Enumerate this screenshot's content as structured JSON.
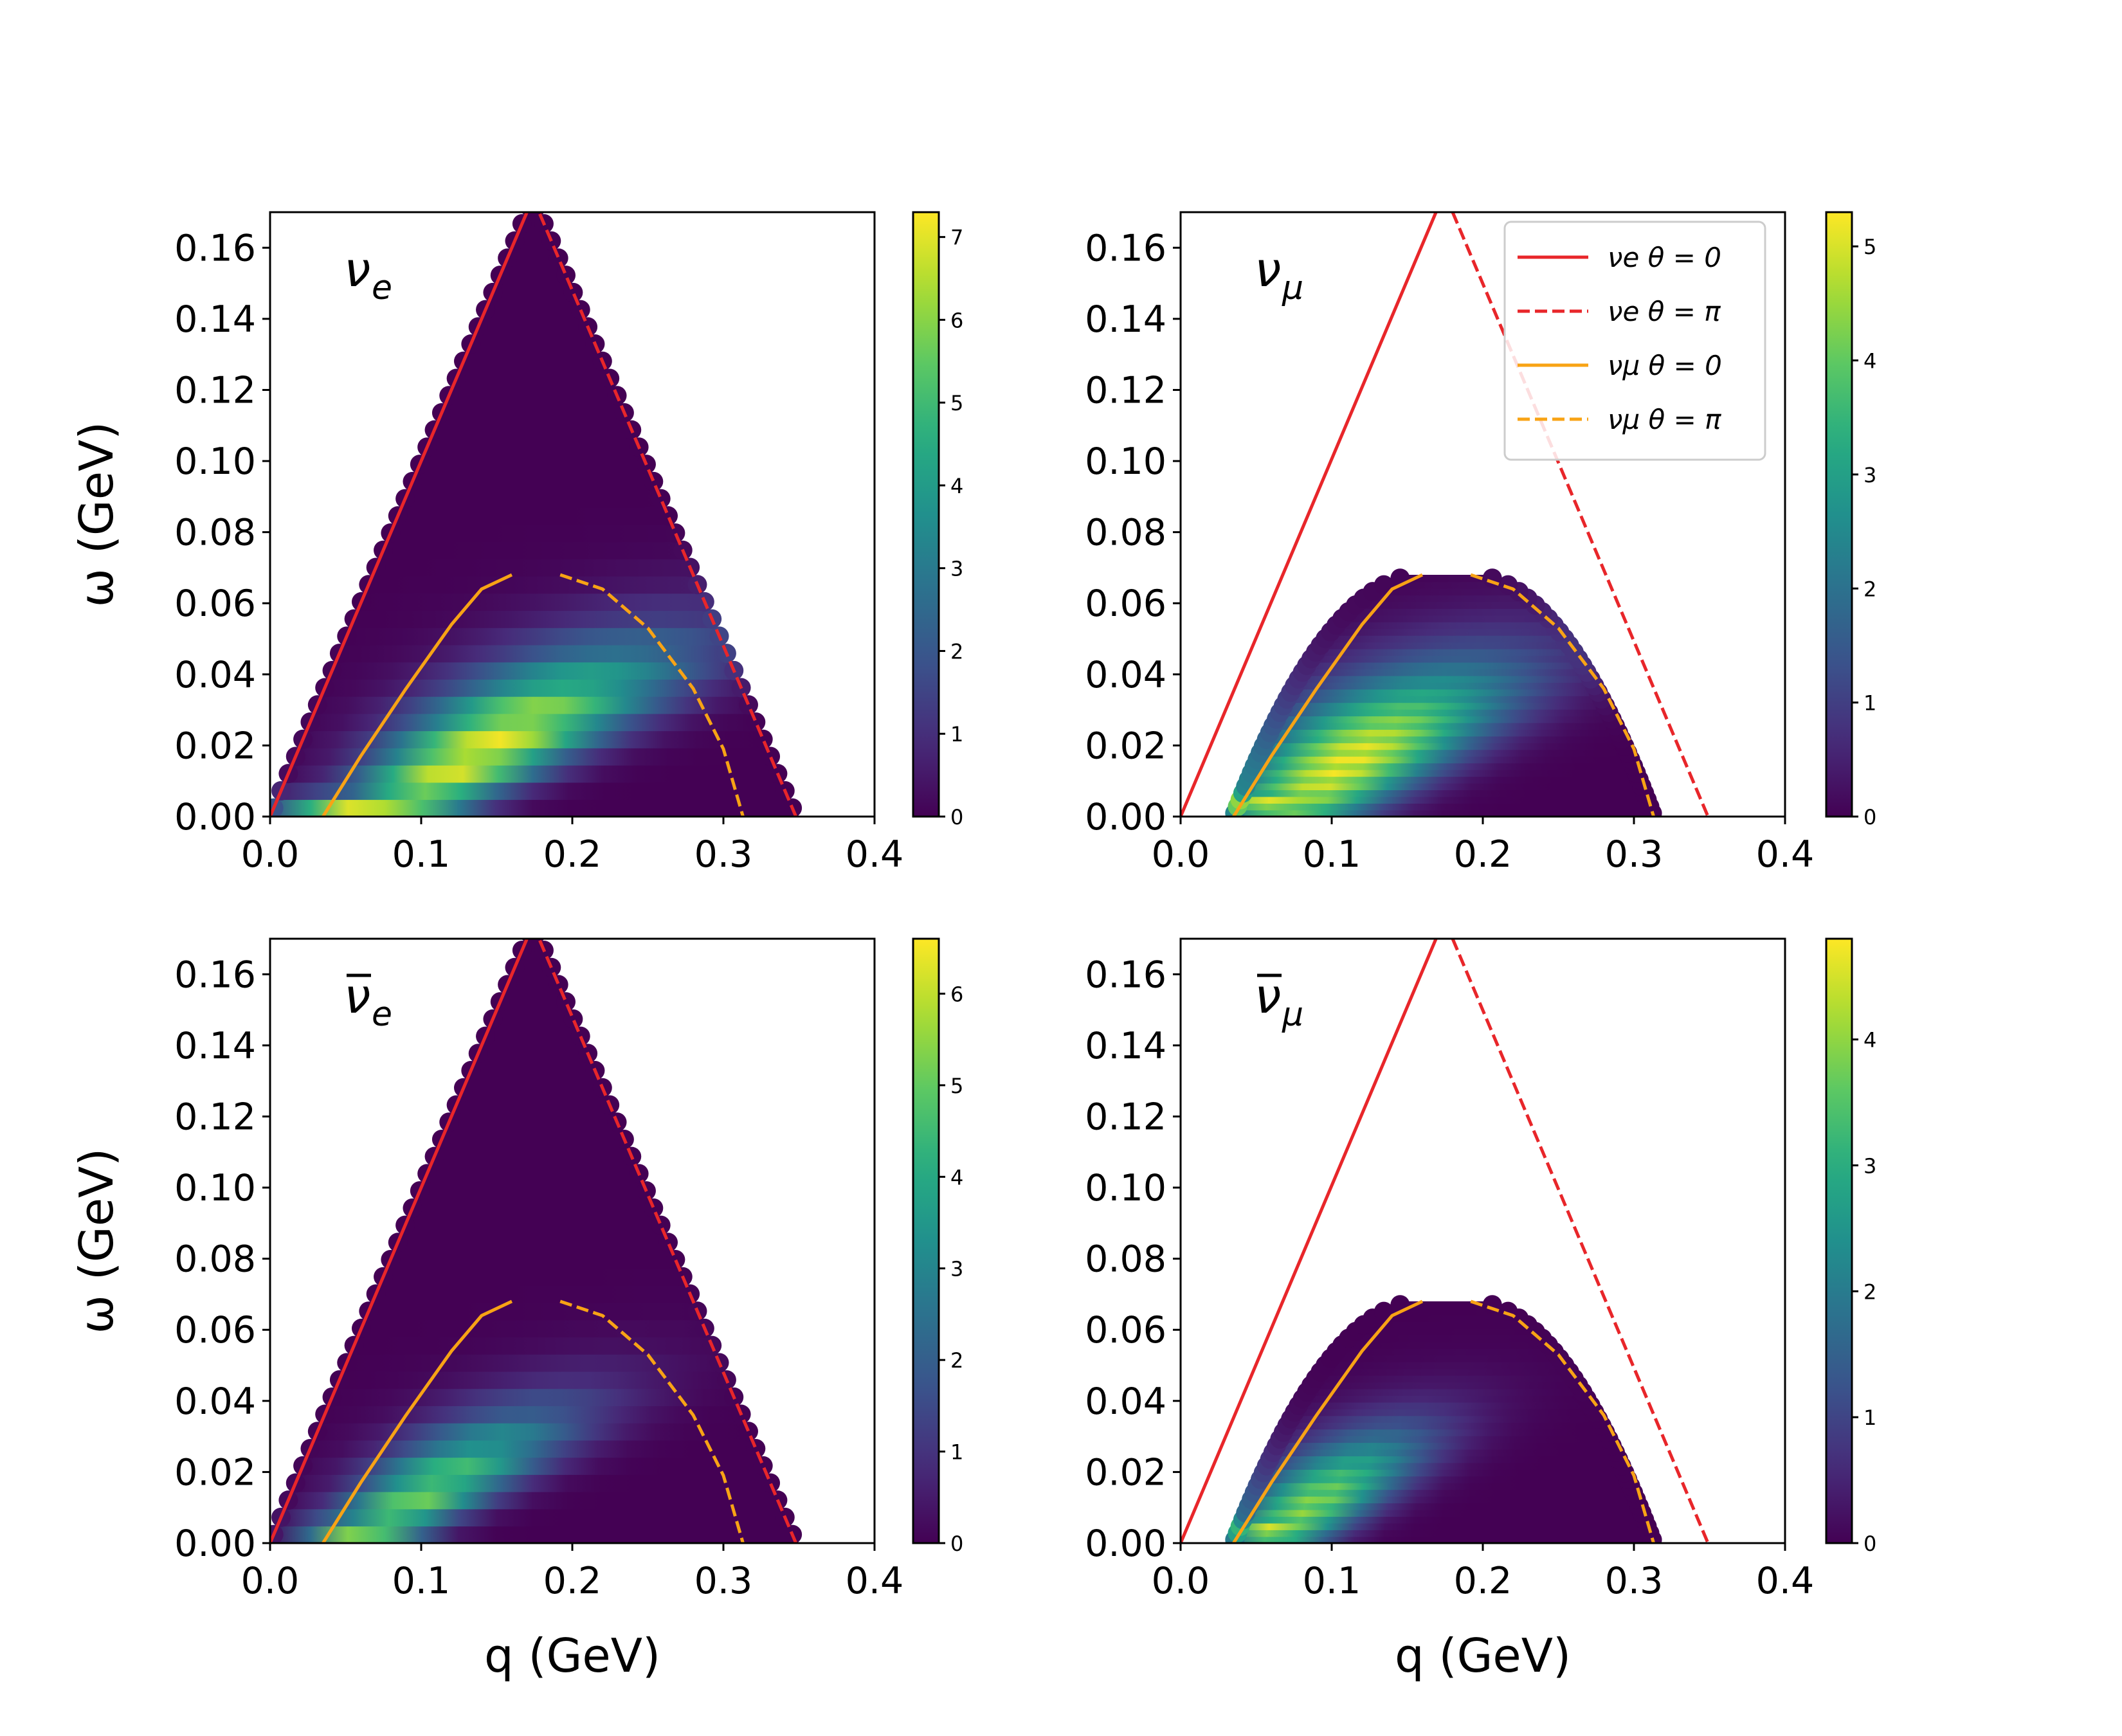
{
  "figure": {
    "type": "heatmap",
    "description_labels": {
      "xlabel": "q (GeV)",
      "ylabel": "ω (GeV)"
    }
  },
  "colormap": [
    "#440154",
    "#472c7a",
    "#3b518b",
    "#2c718e",
    "#21908d",
    "#27ad81",
    "#5cc863",
    "#aadc32",
    "#fde725"
  ],
  "colors": {
    "red": "#e8262a",
    "orange": "#f8a315"
  },
  "legend": {
    "entries": [
      {
        "label": "νe θ = 0",
        "color": "#e8262a",
        "dash": "solid"
      },
      {
        "label": "νe θ = π",
        "color": "#e8262a",
        "dash": "dashed"
      },
      {
        "label": "νμ θ = 0",
        "color": "#f8a315",
        "dash": "solid"
      },
      {
        "label": "νμ θ = π",
        "color": "#f8a315",
        "dash": "dashed"
      }
    ],
    "placement": "top-right of top-right panel"
  },
  "chart_data": [
    {
      "type": "heatmap",
      "panel": "top-left",
      "title": "νe",
      "title_main": "ν",
      "title_sub": "e",
      "title_bar": false,
      "xlabel": "",
      "ylabel": "ω (GeV)",
      "xlim": [
        0.0,
        0.4
      ],
      "ylim": [
        0.0,
        0.17
      ],
      "xticks": [
        "0.0",
        "0.1",
        "0.2",
        "0.3",
        "0.4"
      ],
      "yticks": [
        "0.00",
        "0.02",
        "0.04",
        "0.06",
        "0.08",
        "0.10",
        "0.12",
        "0.14",
        "0.16"
      ],
      "colorbar": {
        "min": 0,
        "max": 7.3,
        "ticks": [
          "0",
          "1",
          "2",
          "3",
          "4",
          "5",
          "6",
          "7"
        ]
      },
      "region": {
        "shape": "triangle",
        "q_max": 0.348,
        "omega_peak": 0.174,
        "q_peak": 0.174
      },
      "max_value": 7.3,
      "band_mode": "wide",
      "curves": [
        {
          "name": "νe θ = 0",
          "color": "red",
          "dash": "solid",
          "points": [
            [
              0.0,
              0.0
            ],
            [
              0.174,
              0.174
            ]
          ]
        },
        {
          "name": "νe θ = π",
          "color": "red",
          "dash": "dashed",
          "points": [
            [
              0.174,
              0.174
            ],
            [
              0.348,
              0.0
            ]
          ]
        },
        {
          "name": "νμ θ = 0",
          "color": "orange",
          "dash": "solid",
          "points": [
            [
              0.035,
              0.0
            ],
            [
              0.06,
              0.017
            ],
            [
              0.09,
              0.036
            ],
            [
              0.12,
              0.054
            ],
            [
              0.14,
              0.064
            ],
            [
              0.16,
              0.068
            ]
          ]
        },
        {
          "name": "νμ θ = π",
          "color": "orange",
          "dash": "dashed",
          "points": [
            [
              0.192,
              0.068
            ],
            [
              0.22,
              0.064
            ],
            [
              0.25,
              0.053
            ],
            [
              0.28,
              0.036
            ],
            [
              0.3,
              0.019
            ],
            [
              0.313,
              0.0
            ]
          ]
        }
      ]
    },
    {
      "type": "heatmap",
      "panel": "top-right",
      "title": "νμ",
      "title_main": "ν",
      "title_sub": "μ",
      "title_bar": false,
      "xlabel": "",
      "ylabel": "",
      "xlim": [
        0.0,
        0.4
      ],
      "ylim": [
        0.0,
        0.17
      ],
      "xticks": [
        "0.0",
        "0.1",
        "0.2",
        "0.3",
        "0.4"
      ],
      "yticks": [
        "0.00",
        "0.02",
        "0.04",
        "0.06",
        "0.08",
        "0.10",
        "0.12",
        "0.14",
        "0.16"
      ],
      "colorbar": {
        "min": 0,
        "max": 5.3,
        "ticks": [
          "0",
          "1",
          "2",
          "3",
          "4",
          "5"
        ]
      },
      "region": {
        "shape": "dome",
        "q_min": 0.035,
        "q_max": 0.313,
        "omega_top": 0.068,
        "q_left_top": 0.16,
        "q_right_top": 0.192
      },
      "max_value": 5.3,
      "band_mode": "wide",
      "curves": [
        {
          "name": "νe θ = 0",
          "color": "red",
          "dash": "solid",
          "points": [
            [
              0.0,
              0.0
            ],
            [
              0.169,
              0.17
            ]
          ]
        },
        {
          "name": "νe θ = π",
          "color": "red",
          "dash": "dashed",
          "points": [
            [
              0.18,
              0.17
            ],
            [
              0.349,
              0.0
            ]
          ]
        },
        {
          "name": "νμ θ = 0",
          "color": "orange",
          "dash": "solid",
          "points": [
            [
              0.035,
              0.0
            ],
            [
              0.06,
              0.017
            ],
            [
              0.09,
              0.036
            ],
            [
              0.12,
              0.054
            ],
            [
              0.14,
              0.064
            ],
            [
              0.16,
              0.068
            ]
          ]
        },
        {
          "name": "νμ θ = π",
          "color": "orange",
          "dash": "dashed",
          "points": [
            [
              0.192,
              0.068
            ],
            [
              0.22,
              0.064
            ],
            [
              0.25,
              0.053
            ],
            [
              0.28,
              0.036
            ],
            [
              0.3,
              0.019
            ],
            [
              0.313,
              0.0
            ]
          ]
        }
      ]
    },
    {
      "type": "heatmap",
      "panel": "bottom-left",
      "title": "ν̄e",
      "title_main": "ν",
      "title_sub": "e",
      "title_bar": true,
      "xlabel": "q (GeV)",
      "ylabel": "ω (GeV)",
      "xlim": [
        0.0,
        0.4
      ],
      "ylim": [
        0.0,
        0.17
      ],
      "xticks": [
        "0.0",
        "0.1",
        "0.2",
        "0.3",
        "0.4"
      ],
      "yticks": [
        "0.00",
        "0.02",
        "0.04",
        "0.06",
        "0.08",
        "0.10",
        "0.12",
        "0.14",
        "0.16"
      ],
      "colorbar": {
        "min": 0,
        "max": 6.6,
        "ticks": [
          "0",
          "1",
          "2",
          "3",
          "4",
          "5",
          "6"
        ]
      },
      "region": {
        "shape": "triangle",
        "q_max": 0.348,
        "omega_peak": 0.174,
        "q_peak": 0.174
      },
      "max_value": 6.6,
      "band_mode": "narrow",
      "curves": [
        {
          "name": "νe θ = 0",
          "color": "red",
          "dash": "solid",
          "points": [
            [
              0.0,
              0.0
            ],
            [
              0.174,
              0.174
            ]
          ]
        },
        {
          "name": "νe θ = π",
          "color": "red",
          "dash": "dashed",
          "points": [
            [
              0.174,
              0.174
            ],
            [
              0.348,
              0.0
            ]
          ]
        },
        {
          "name": "νμ θ = 0",
          "color": "orange",
          "dash": "solid",
          "points": [
            [
              0.035,
              0.0
            ],
            [
              0.06,
              0.017
            ],
            [
              0.09,
              0.036
            ],
            [
              0.12,
              0.054
            ],
            [
              0.14,
              0.064
            ],
            [
              0.16,
              0.068
            ]
          ]
        },
        {
          "name": "νμ θ = π",
          "color": "orange",
          "dash": "dashed",
          "points": [
            [
              0.192,
              0.068
            ],
            [
              0.22,
              0.064
            ],
            [
              0.25,
              0.053
            ],
            [
              0.28,
              0.036
            ],
            [
              0.3,
              0.019
            ],
            [
              0.313,
              0.0
            ]
          ]
        }
      ]
    },
    {
      "type": "heatmap",
      "panel": "bottom-right",
      "title": "ν̄μ",
      "title_main": "ν",
      "title_sub": "μ",
      "title_bar": true,
      "xlabel": "q (GeV)",
      "ylabel": "",
      "xlim": [
        0.0,
        0.4
      ],
      "ylim": [
        0.0,
        0.17
      ],
      "xticks": [
        "0.0",
        "0.1",
        "0.2",
        "0.3",
        "0.4"
      ],
      "yticks": [
        "0.00",
        "0.02",
        "0.04",
        "0.06",
        "0.08",
        "0.10",
        "0.12",
        "0.14",
        "0.16"
      ],
      "colorbar": {
        "min": 0,
        "max": 4.8,
        "ticks": [
          "0",
          "1",
          "2",
          "3",
          "4"
        ]
      },
      "region": {
        "shape": "dome",
        "q_min": 0.035,
        "q_max": 0.313,
        "omega_top": 0.068,
        "q_left_top": 0.16,
        "q_right_top": 0.192
      },
      "max_value": 4.8,
      "band_mode": "narrow",
      "curves": [
        {
          "name": "νe θ = 0",
          "color": "red",
          "dash": "solid",
          "points": [
            [
              0.0,
              0.0
            ],
            [
              0.169,
              0.17
            ]
          ]
        },
        {
          "name": "νe θ = π",
          "color": "red",
          "dash": "dashed",
          "points": [
            [
              0.18,
              0.17
            ],
            [
              0.349,
              0.0
            ]
          ]
        },
        {
          "name": "νμ θ = 0",
          "color": "orange",
          "dash": "solid",
          "points": [
            [
              0.035,
              0.0
            ],
            [
              0.06,
              0.017
            ],
            [
              0.09,
              0.036
            ],
            [
              0.12,
              0.054
            ],
            [
              0.14,
              0.064
            ],
            [
              0.16,
              0.068
            ]
          ]
        },
        {
          "name": "νμ θ = π",
          "color": "orange",
          "dash": "dashed",
          "points": [
            [
              0.192,
              0.068
            ],
            [
              0.22,
              0.064
            ],
            [
              0.25,
              0.053
            ],
            [
              0.28,
              0.036
            ],
            [
              0.3,
              0.019
            ],
            [
              0.313,
              0.0
            ]
          ]
        }
      ]
    }
  ]
}
